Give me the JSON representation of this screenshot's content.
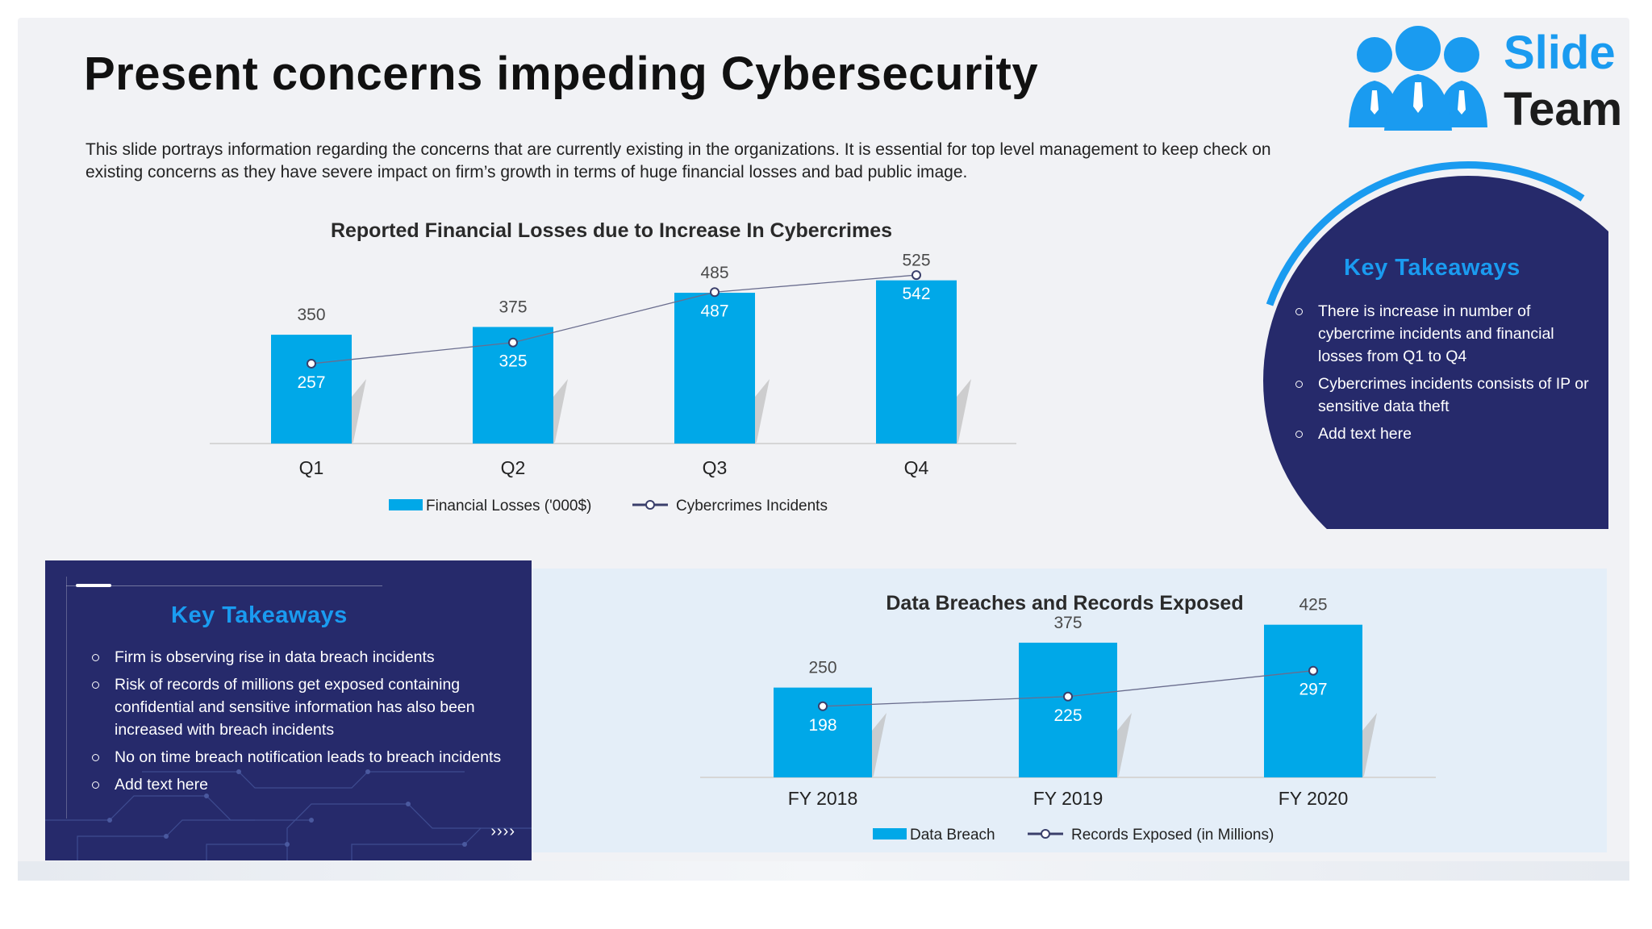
{
  "slide": {
    "title": "Present concerns impeding Cybersecurity",
    "description": "This slide portrays information regarding the concerns that are currently existing in the organizations. It is essential for top level management to keep check on existing concerns as they have severe impact on firm’s growth in terms of huge financial losses and bad public image."
  },
  "logo": {
    "line1": "Slide",
    "line2": "Team"
  },
  "colors": {
    "bar": "#00a8e8",
    "line": "#3a3f6b",
    "navy": "#262a6b",
    "accent": "#1a9bf0"
  },
  "chart_data": [
    {
      "type": "bar",
      "title": "Reported Financial Losses due to Increase In Cybercrimes",
      "categories": [
        "Q1",
        "Q2",
        "Q3",
        "Q4"
      ],
      "series": [
        {
          "name": "Financial Losses  ('000$)",
          "kind": "bar",
          "values": [
            350,
            375,
            485,
            525
          ]
        },
        {
          "name": "Cybercrimes Incidents",
          "kind": "line",
          "values": [
            257,
            325,
            487,
            542
          ]
        }
      ],
      "ylim": [
        0,
        550
      ],
      "grid": false,
      "legend": "bottom"
    },
    {
      "type": "bar",
      "title": "Data Breaches and Records Exposed",
      "categories": [
        "FY 2018",
        "FY 2019",
        "FY 2020"
      ],
      "series": [
        {
          "name": "Data Breach",
          "kind": "bar",
          "values": [
            250,
            375,
            425
          ]
        },
        {
          "name": "Records Exposed (in Millions)",
          "kind": "line",
          "values": [
            198,
            225,
            297
          ]
        }
      ],
      "ylim": [
        0,
        440
      ],
      "grid": false,
      "legend": "bottom"
    }
  ],
  "takeaways_right": {
    "title": "Key Takeaways",
    "items": [
      "There is increase in number of cybercrime incidents and financial losses from Q1  to Q4",
      "Cybercrimes incidents consists of IP or sensitive data theft",
      "Add text here"
    ]
  },
  "takeaways_left": {
    "title": "Key Takeaways",
    "items": [
      "Firm is observing rise in data breach incidents",
      "Risk of records of millions get exposed containing confidential and sensitive information has also been increased with breach incidents",
      "No on time breach notification leads to breach incidents",
      "Add text here"
    ],
    "arrows": "››››"
  }
}
